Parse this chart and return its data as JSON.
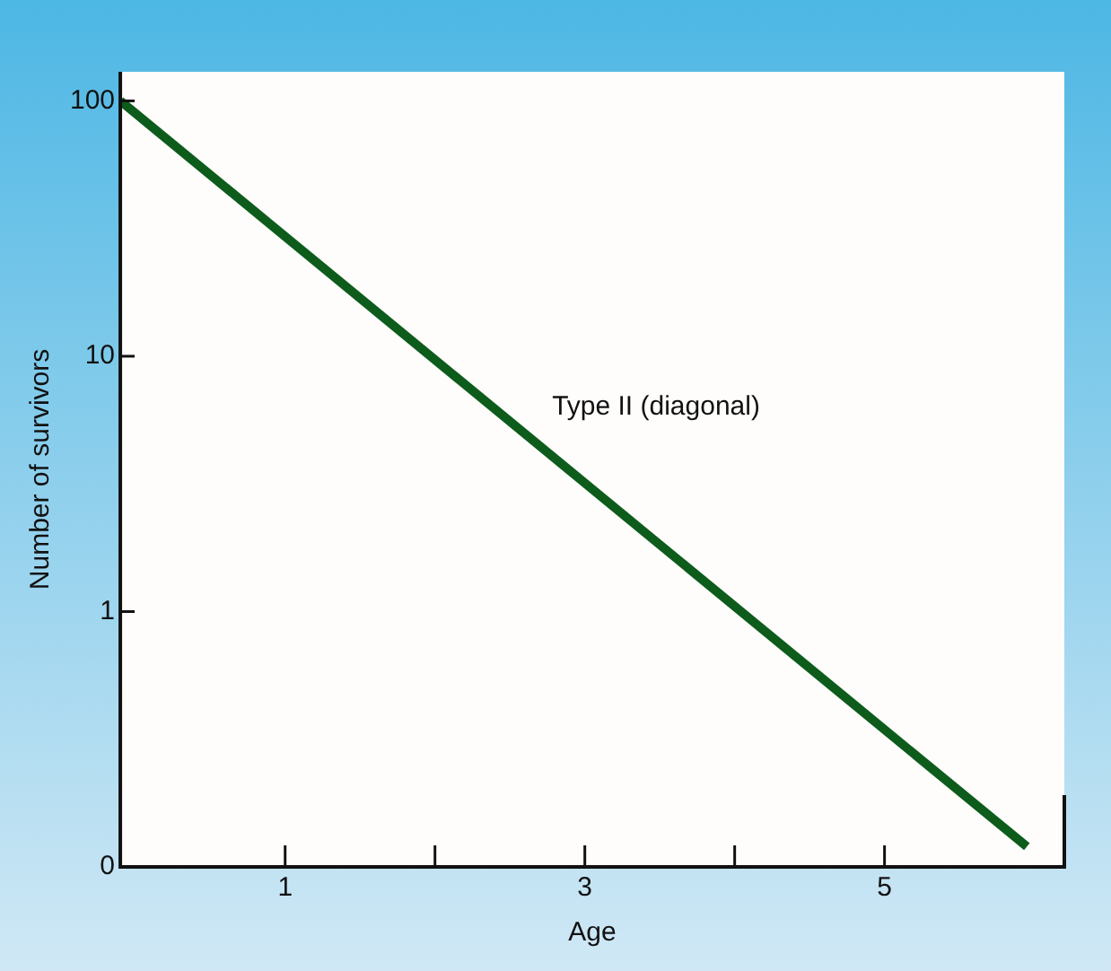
{
  "chart_data": {
    "type": "line",
    "xlabel": "Age",
    "ylabel": "Number of survivors",
    "series": [
      {
        "name": "Type II (diagonal)",
        "color": "#0d5c1c",
        "x": [
          -0.1,
          5.95
        ],
        "values": [
          100,
          0.12
        ]
      }
    ],
    "xlim": [
      -0.1,
      6.2
    ],
    "xticks": [
      1,
      {
        "value": 2,
        "label": null
      },
      3,
      {
        "value": 4,
        "label": null
      },
      5
    ],
    "ylim": [
      0.1,
      130
    ],
    "yticks": [
      {
        "value": 0.1,
        "label": "0"
      },
      1,
      10,
      100
    ],
    "log": "y",
    "grid": false,
    "legend": false,
    "marker": "none",
    "line_style": "solid"
  }
}
